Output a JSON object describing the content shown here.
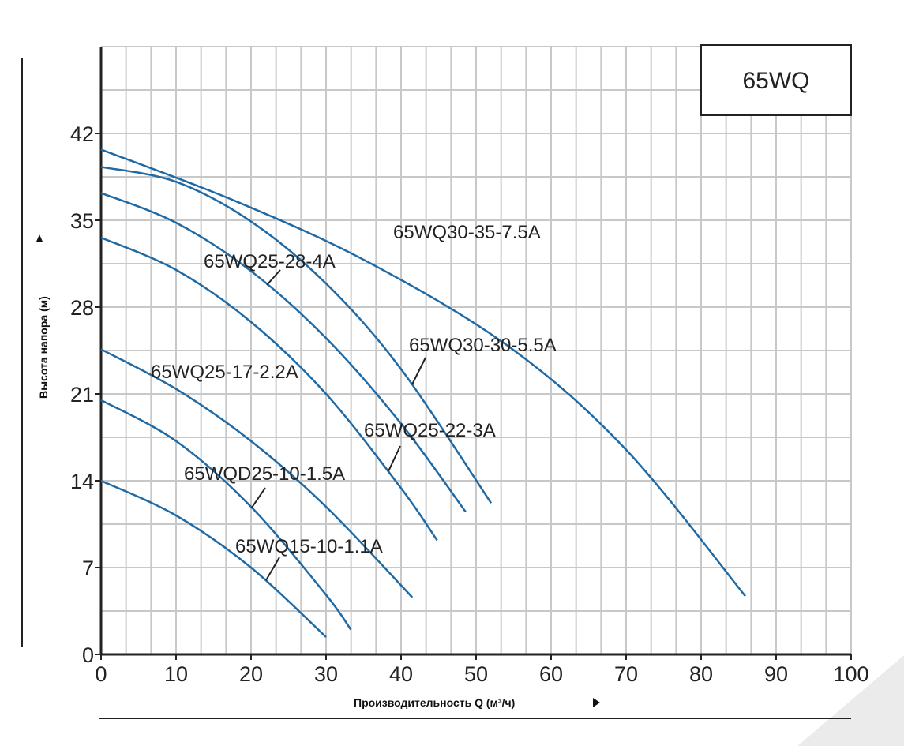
{
  "chart_data": {
    "type": "line",
    "title": "65WQ",
    "xlabel": "Производительность Q (м³/ч)",
    "ylabel": "Высота напора (м)",
    "xlim": [
      0,
      100
    ],
    "ylim": [
      0,
      49
    ],
    "xticks": [
      0,
      10,
      20,
      30,
      40,
      50,
      60,
      70,
      80,
      90,
      100
    ],
    "yticks": [
      0,
      7,
      14,
      21,
      28,
      35,
      42
    ],
    "grid": true,
    "line_color": "#1f6aa5",
    "series": [
      {
        "name": "65WQ15-10-1.1A",
        "points": [
          [
            0,
            14.0
          ],
          [
            10,
            11.2
          ],
          [
            20,
            7.0
          ],
          [
            30,
            1.4
          ]
        ]
      },
      {
        "name": "65WQD25-10-1.5A",
        "points": [
          [
            0,
            20.5
          ],
          [
            10,
            17.2
          ],
          [
            20,
            11.9
          ],
          [
            30,
            4.8
          ],
          [
            33.3,
            2.0
          ]
        ]
      },
      {
        "name": "65WQ25-17-2.2A",
        "points": [
          [
            0,
            24.6
          ],
          [
            10,
            21.4
          ],
          [
            20,
            17.2
          ],
          [
            30,
            11.9
          ],
          [
            41.5,
            4.6
          ]
        ]
      },
      {
        "name": "65WQ25-22-3A",
        "points": [
          [
            0,
            33.6
          ],
          [
            10,
            31.0
          ],
          [
            20,
            26.8
          ],
          [
            30,
            21.0
          ],
          [
            40,
            13.4
          ],
          [
            44.8,
            9.2
          ]
        ]
      },
      {
        "name": "65WQ25-28-4A",
        "points": [
          [
            0,
            37.2
          ],
          [
            10,
            34.8
          ],
          [
            20,
            30.9
          ],
          [
            30,
            25.5
          ],
          [
            40,
            18.6
          ],
          [
            48.6,
            11.5
          ]
        ]
      },
      {
        "name": "65WQ30-30-5.5A",
        "points": [
          [
            0,
            39.3
          ],
          [
            10,
            38.1
          ],
          [
            20,
            34.9
          ],
          [
            30,
            29.9
          ],
          [
            40,
            23.0
          ],
          [
            52,
            12.2
          ]
        ]
      },
      {
        "name": "65WQ30-35-7.5A",
        "points": [
          [
            0,
            40.7
          ],
          [
            18.1,
            36.5
          ],
          [
            35.7,
            31.6
          ],
          [
            54.4,
            24.8
          ],
          [
            70,
            16.5
          ],
          [
            85.9,
            4.7
          ]
        ]
      }
    ]
  }
}
